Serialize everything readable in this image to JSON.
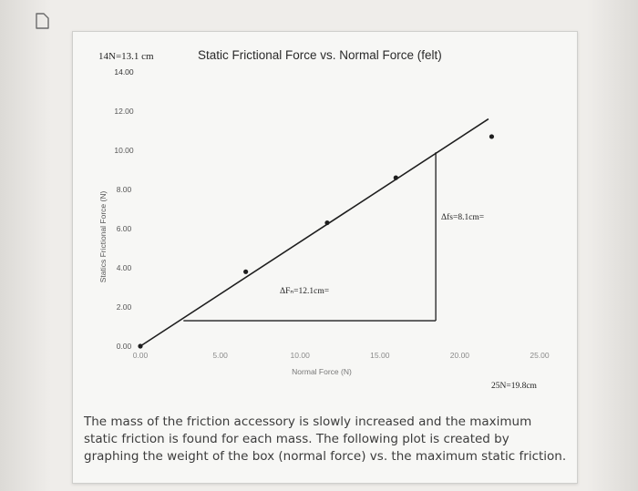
{
  "colors": {
    "background": "#eceae6",
    "card": "#f7f7f5",
    "line": "#1e1e1e",
    "tick_text": "#555555",
    "caption_text": "#3c3c3c"
  },
  "icons": {
    "corner": "document-icon"
  },
  "annotations": {
    "top_left": "14N=13.1 cm",
    "bottom_right": "25N=19.8cm",
    "delta_fn": "ΔFₙ=12.1cm=",
    "delta_fs": "Δfs=8.1cm="
  },
  "caption": "The mass of the friction accessory is slowly increased and the maximum static friction is found for each mass. The following plot is created by graphing the weight of the box (normal force) vs. the maximum static friction.",
  "chart_data": {
    "type": "scatter",
    "title": "Static Frictional Force vs. Normal Force (felt)",
    "xlabel": "Normal Force (N)",
    "ylabel": "Statics Frictional Force (N)",
    "xlim": [
      0,
      25
    ],
    "ylim": [
      0,
      14
    ],
    "x_ticks": [
      "0.00",
      "5.00",
      "10.00",
      "15.00",
      "20.00",
      "25.00"
    ],
    "y_ticks": [
      "0.00",
      "2.00",
      "4.00",
      "6.00",
      "8.00",
      "10.00",
      "12.00",
      "14.00"
    ],
    "grid": false,
    "points": [
      {
        "x": 0.0,
        "y": 0.0
      },
      {
        "x": 6.6,
        "y": 3.8
      },
      {
        "x": 11.7,
        "y": 6.3
      },
      {
        "x": 16.0,
        "y": 8.6
      },
      {
        "x": 22.0,
        "y": 10.7
      }
    ],
    "trendline": [
      {
        "x": 0.0,
        "y": 0.0
      },
      {
        "x": 21.8,
        "y": 11.6
      }
    ],
    "slope_triangle": {
      "run": [
        {
          "x": 2.7,
          "y": 1.3
        },
        {
          "x": 18.5,
          "y": 1.3
        }
      ],
      "rise": [
        {
          "x": 18.5,
          "y": 1.3
        },
        {
          "x": 18.5,
          "y": 9.9
        }
      ]
    }
  }
}
